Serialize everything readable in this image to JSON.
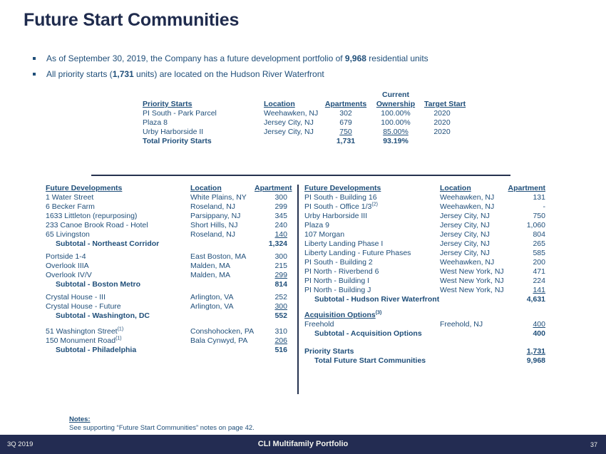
{
  "slide": {
    "title": "Future Start Communities",
    "notes": {
      "label": "Notes:",
      "text": "See supporting “Future Start Communities” notes on page 42."
    },
    "footer": {
      "left": "3Q 2019",
      "center": "CLI Multifamily Portfolio",
      "page": "37"
    }
  },
  "bullets": [
    {
      "pre": "As of September 30, 2019, the Company has a future development portfolio of ",
      "bold": "9,968",
      "post": " residential units"
    },
    {
      "pre": "All priority starts (",
      "bold": "1,731",
      "post": " units) are located on the Hudson River Waterfront"
    }
  ],
  "priority_table": {
    "headers": {
      "name": "Priority Starts",
      "location": "Location",
      "apartments": "Apartments",
      "ownership_top": "Current",
      "ownership": "Ownership",
      "target": "Target Start"
    },
    "rows": [
      {
        "name": "PI South - Park Parcel",
        "location": "Weehawken, NJ",
        "apartments": "302",
        "ownership": "100.00%",
        "target": "2020"
      },
      {
        "name": "Plaza 8",
        "location": "Jersey City, NJ",
        "apartments": "679",
        "ownership": "100.00%",
        "target": "2020"
      },
      {
        "name": "Urby Harborside II",
        "location": "Jersey City, NJ",
        "apartments": "750",
        "ownership": "85.00%",
        "target": "2020",
        "apartments_underline": true,
        "ownership_underline": true
      },
      {
        "name": "Total Priority Starts",
        "location": "",
        "apartments": "1,731",
        "ownership": "93.19%",
        "target": "",
        "bold": true
      }
    ]
  },
  "left_table": {
    "headers": {
      "name": "Future Developments",
      "location": "Location",
      "value": "Apartment"
    },
    "rows": [
      {
        "name": "1 Water Street",
        "location": "White Plains, NY",
        "value": "300"
      },
      {
        "name": "6 Becker Farm",
        "location": "Roseland, NJ",
        "value": "299"
      },
      {
        "name": "1633 Littleton (repurposing)",
        "location": "Parsippany, NJ",
        "value": "345"
      },
      {
        "name": "233 Canoe Brook Road - Hotel",
        "location": "Short Hills, NJ",
        "value": "240"
      },
      {
        "name": "65 Livingston",
        "location": "Roseland, NJ",
        "value": "140",
        "value_underline": true
      },
      {
        "name": "Subtotal - Northeast Corridor",
        "value": "1,324",
        "style": "subtotal"
      },
      {
        "name": "Portside 1-4",
        "location": "East Boston, MA",
        "value": "300",
        "gap_before": 5
      },
      {
        "name": "Overlook IIIA",
        "location": "Malden, MA",
        "value": "215"
      },
      {
        "name": "Overlook IV/V",
        "location": "Malden, MA",
        "value": "299",
        "value_underline": true
      },
      {
        "name": "Subtotal - Boston Metro",
        "value": "814",
        "style": "subtotal"
      },
      {
        "name": "Crystal House - III",
        "location": "Arlington, VA",
        "value": "252",
        "gap_before": 5
      },
      {
        "name": "Crystal House - Future",
        "location": "Arlington, VA",
        "value": "300",
        "value_underline": true
      },
      {
        "name": "Subtotal - Washington, DC",
        "value": "552",
        "style": "subtotal"
      },
      {
        "name": "51 Washington Street",
        "sup": "(1)",
        "location": "Conshohocken, PA",
        "value": "310",
        "gap_before": 9
      },
      {
        "name": "150 Monument Road",
        "sup": "(1)",
        "location": "Bala Cynwyd, PA",
        "value": "206",
        "value_underline": true
      },
      {
        "name": "Subtotal - Philadelphia",
        "value": "516",
        "style": "subtotal"
      }
    ]
  },
  "right_table": {
    "headers": {
      "name": "Future Developments",
      "location": "Location",
      "value": "Apartment"
    },
    "rows": [
      {
        "name": "PI South - Building 16",
        "location": "Weehawken, NJ",
        "value": "131"
      },
      {
        "name": "PI South - Office 1/3",
        "sup": "(2)",
        "location": "Weehawken, NJ",
        "value": "-"
      },
      {
        "name": "Urby Harborside III",
        "location": "Jersey City, NJ",
        "value": "750"
      },
      {
        "name": "Plaza 9",
        "location": "Jersey City, NJ",
        "value": "1,060"
      },
      {
        "name": "107 Morgan",
        "location": "Jersey City, NJ",
        "value": "804"
      },
      {
        "name": "Liberty Landing Phase I",
        "location": "Jersey City, NJ",
        "value": "265"
      },
      {
        "name": "Liberty Landing - Future Phases",
        "location": "Jersey City, NJ",
        "value": "585"
      },
      {
        "name": "PI South - Building 2",
        "location": "Weehawken, NJ",
        "value": "200"
      },
      {
        "name": "PI North - Riverbend 6",
        "location": "West New York, NJ",
        "value": "471"
      },
      {
        "name": "PI North - Building I",
        "location": "West New York, NJ",
        "value": "224"
      },
      {
        "name": "PI North - Building J",
        "location": "West New York, NJ",
        "value": "141",
        "value_underline": true
      },
      {
        "name": "Subtotal - Hudson River Waterfront",
        "value": "4,631",
        "style": "subtotal"
      },
      {
        "name": "Acquisition Options",
        "sup": "(3)",
        "style": "section",
        "gap_before": 9
      },
      {
        "name": "Freehold",
        "location": "Freehold, NJ",
        "value": "400",
        "value_underline": true
      },
      {
        "name": "Subtotal - Acquisition Options",
        "value": "400",
        "style": "subtotal"
      },
      {
        "name": "Priority Starts",
        "value": "1,731",
        "style": "bold",
        "value_underline": true,
        "gap_before": 12
      },
      {
        "name": "Total Future Start Communities",
        "value": "9,968",
        "style": "subtotal"
      }
    ]
  },
  "colors": {
    "text_navy": "#1F4E79",
    "title_navy": "#1F2B4D",
    "footer_bar": "#232C52"
  }
}
